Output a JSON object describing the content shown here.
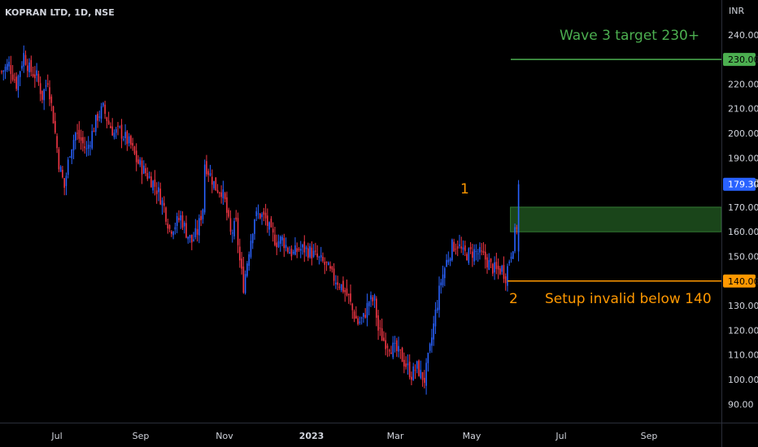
{
  "header": {
    "symbol_title": "KOPRAN LTD, 1D, NSE"
  },
  "colors": {
    "up": "#2962ff",
    "down": "#f23645",
    "target": "#4caf50",
    "invalid": "#ff9800",
    "zone_fill": "#1d4d1d",
    "axis_text": "#d1d4dc"
  },
  "annotations": {
    "target_text": "Wave 3 target 230+",
    "invalid_text": "Setup invalid below 140",
    "wave1": "1",
    "wave2": "2"
  },
  "chart_data": {
    "type": "candlestick",
    "currency": "INR",
    "ylim": [
      85,
      245
    ],
    "y_ticks": [
      "240.00",
      "230.00",
      "220.00",
      "210.00",
      "200.00",
      "190.00",
      "180.00",
      "170.00",
      "160.00",
      "150.00",
      "140.00",
      "130.00",
      "120.00",
      "110.00",
      "100.00",
      "90.00"
    ],
    "x_ticks": [
      "Jul",
      "Sep",
      "Nov",
      "2023",
      "Mar",
      "May",
      "Jul",
      "Sep"
    ],
    "last_price": {
      "value": 179.3,
      "label": "179.30"
    },
    "target_line": {
      "value": 230,
      "label": "230.00"
    },
    "invalid_line": {
      "value": 140,
      "label": "140.00"
    },
    "zone": {
      "low": 160,
      "high": 170
    },
    "close_path": [
      [
        0,
        225
      ],
      [
        4,
        228
      ],
      [
        8,
        220
      ],
      [
        12,
        232
      ],
      [
        15,
        226
      ],
      [
        19,
        223
      ],
      [
        22,
        215
      ],
      [
        25,
        222
      ],
      [
        28,
        206
      ],
      [
        31,
        188
      ],
      [
        34,
        178
      ],
      [
        37,
        193
      ],
      [
        40,
        200
      ],
      [
        43,
        197
      ],
      [
        46,
        193
      ],
      [
        49,
        200
      ],
      [
        52,
        207
      ],
      [
        55,
        210
      ],
      [
        58,
        204
      ],
      [
        61,
        200
      ],
      [
        64,
        201
      ],
      [
        67,
        198
      ],
      [
        70,
        195
      ],
      [
        73,
        189
      ],
      [
        76,
        186
      ],
      [
        79,
        183
      ],
      [
        82,
        180
      ],
      [
        85,
        176
      ],
      [
        88,
        170
      ],
      [
        91,
        161
      ],
      [
        94,
        163
      ],
      [
        97,
        166
      ],
      [
        100,
        160
      ],
      [
        103,
        156
      ],
      [
        106,
        160
      ],
      [
        109,
        170
      ],
      [
        110,
        188
      ],
      [
        113,
        183
      ],
      [
        116,
        178
      ],
      [
        119,
        177
      ],
      [
        121,
        172
      ],
      [
        124,
        159
      ],
      [
        127,
        163
      ],
      [
        129,
        148
      ],
      [
        131,
        138
      ],
      [
        134,
        153
      ],
      [
        137,
        166
      ],
      [
        140,
        167
      ],
      [
        143,
        165
      ],
      [
        146,
        159
      ],
      [
        149,
        156
      ],
      [
        152,
        157
      ],
      [
        155,
        153
      ],
      [
        158,
        151
      ],
      [
        161,
        153
      ],
      [
        164,
        153
      ],
      [
        167,
        152
      ],
      [
        170,
        150
      ],
      [
        173,
        148
      ],
      [
        176,
        146
      ],
      [
        179,
        142
      ],
      [
        182,
        140
      ],
      [
        185,
        137
      ],
      [
        188,
        133
      ],
      [
        190,
        128
      ],
      [
        193,
        123
      ],
      [
        196,
        125
      ],
      [
        199,
        132
      ],
      [
        202,
        132
      ],
      [
        204,
        120
      ],
      [
        207,
        116
      ],
      [
        210,
        114
      ],
      [
        213,
        112
      ],
      [
        216,
        110
      ],
      [
        219,
        106
      ],
      [
        222,
        102
      ],
      [
        225,
        105
      ],
      [
        227,
        102
      ],
      [
        229,
        100
      ],
      [
        232,
        112
      ],
      [
        235,
        127
      ],
      [
        238,
        140
      ],
      [
        241,
        148
      ],
      [
        244,
        154
      ],
      [
        247,
        155
      ],
      [
        250,
        151
      ],
      [
        253,
        151
      ],
      [
        256,
        152
      ],
      [
        259,
        151
      ],
      [
        262,
        149
      ],
      [
        265,
        146
      ],
      [
        268,
        144
      ],
      [
        271,
        145
      ],
      [
        273,
        142
      ],
      [
        275,
        149
      ],
      [
        277,
        155
      ],
      [
        279,
        163
      ],
      [
        280,
        179.3
      ]
    ],
    "x_domain": [
      0,
      400
    ]
  }
}
